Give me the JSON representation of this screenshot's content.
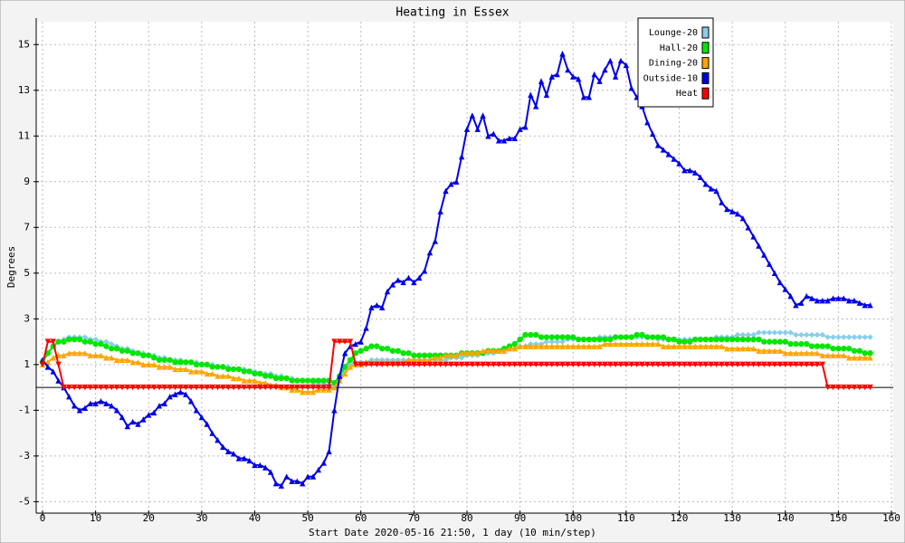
{
  "chart_data": {
    "type": "line",
    "title": "Heating in Essex",
    "x_label": "Start Date 2020-05-16 21:50, 1 day (10 min/step)",
    "y_label": "Degrees",
    "xlim": [
      0,
      160
    ],
    "xticks": [
      0,
      10,
      20,
      30,
      40,
      50,
      60,
      70,
      80,
      90,
      100,
      110,
      120,
      130,
      140,
      150,
      160
    ],
    "ylim": [
      -5.5,
      16
    ],
    "yticks": [
      -5,
      -3,
      -1,
      1,
      3,
      5,
      7,
      9,
      11,
      13,
      15
    ],
    "grid": true,
    "legend": "top-right",
    "x": [
      0,
      1,
      2,
      3,
      4,
      5,
      6,
      7,
      8,
      9,
      10,
      11,
      12,
      13,
      14,
      15,
      16,
      17,
      18,
      19,
      20,
      21,
      22,
      23,
      24,
      25,
      26,
      27,
      28,
      29,
      30,
      31,
      32,
      33,
      34,
      35,
      36,
      37,
      38,
      39,
      40,
      41,
      42,
      43,
      44,
      45,
      46,
      47,
      48,
      49,
      50,
      51,
      52,
      53,
      54,
      55,
      56,
      57,
      58,
      59,
      60,
      61,
      62,
      63,
      64,
      65,
      66,
      67,
      68,
      69,
      70,
      71,
      72,
      73,
      74,
      75,
      76,
      77,
      78,
      79,
      80,
      81,
      82,
      83,
      84,
      85,
      86,
      87,
      88,
      89,
      90,
      91,
      92,
      93,
      94,
      95,
      96,
      97,
      98,
      99,
      100,
      101,
      102,
      103,
      104,
      105,
      106,
      107,
      108,
      109,
      110,
      111,
      112,
      113,
      114,
      115,
      116,
      117,
      118,
      119,
      120,
      121,
      122,
      123,
      124,
      125,
      126,
      127,
      128,
      129,
      130,
      131,
      132,
      133,
      134,
      135,
      136,
      137,
      138,
      139,
      140,
      141,
      142,
      143,
      144,
      145,
      146,
      147,
      148,
      149,
      150,
      151,
      152,
      153,
      154,
      155,
      156
    ],
    "series": [
      {
        "name": "Lounge-20",
        "color": "#87ceeb",
        "marker": "diamond",
        "values": [
          1.2,
          1.5,
          1.8,
          2.0,
          2.1,
          2.2,
          2.2,
          2.2,
          2.2,
          2.1,
          2.1,
          2.0,
          2.0,
          1.9,
          1.8,
          1.7,
          1.7,
          1.6,
          1.5,
          1.5,
          1.4,
          1.4,
          1.3,
          1.3,
          1.2,
          1.2,
          1.2,
          1.1,
          1.1,
          1.1,
          1.0,
          1.0,
          1.0,
          0.9,
          0.9,
          0.9,
          0.8,
          0.8,
          0.8,
          0.7,
          0.7,
          0.6,
          0.6,
          0.6,
          0.5,
          0.5,
          0.4,
          0.4,
          0.3,
          0.3,
          0.3,
          0.2,
          0.2,
          0.2,
          0.1,
          0.1,
          0.3,
          0.8,
          1.0,
          1.1,
          1.1,
          1.1,
          1.2,
          1.2,
          1.2,
          1.2,
          1.2,
          1.2,
          1.2,
          1.2,
          1.2,
          1.2,
          1.2,
          1.2,
          1.2,
          1.2,
          1.2,
          1.3,
          1.3,
          1.3,
          1.4,
          1.4,
          1.4,
          1.5,
          1.5,
          1.5,
          1.6,
          1.6,
          1.7,
          1.7,
          1.8,
          1.8,
          1.9,
          1.9,
          1.9,
          2.0,
          2.0,
          2.0,
          2.0,
          2.1,
          2.1,
          2.1,
          2.1,
          2.1,
          2.1,
          2.2,
          2.2,
          2.2,
          2.2,
          2.2,
          2.2,
          2.2,
          2.2,
          2.2,
          2.2,
          2.2,
          2.1,
          2.1,
          2.1,
          2.1,
          2.1,
          2.1,
          2.1,
          2.1,
          2.1,
          2.1,
          2.1,
          2.2,
          2.2,
          2.2,
          2.2,
          2.3,
          2.3,
          2.3,
          2.3,
          2.4,
          2.4,
          2.4,
          2.4,
          2.4,
          2.4,
          2.4,
          2.3,
          2.3,
          2.3,
          2.3,
          2.3,
          2.3,
          2.2,
          2.2,
          2.2,
          2.2,
          2.2,
          2.2,
          2.2,
          2.2,
          2.2
        ]
      },
      {
        "name": "Hall-20",
        "color": "#00e600",
        "marker": "circle",
        "values": [
          1.1,
          1.5,
          1.8,
          2.0,
          2.0,
          2.1,
          2.1,
          2.1,
          2.0,
          2.0,
          1.9,
          1.9,
          1.8,
          1.7,
          1.7,
          1.6,
          1.6,
          1.5,
          1.5,
          1.4,
          1.4,
          1.3,
          1.2,
          1.2,
          1.2,
          1.1,
          1.1,
          1.1,
          1.1,
          1.0,
          1.0,
          1.0,
          0.9,
          0.9,
          0.9,
          0.8,
          0.8,
          0.8,
          0.7,
          0.7,
          0.6,
          0.6,
          0.5,
          0.5,
          0.4,
          0.4,
          0.4,
          0.3,
          0.3,
          0.3,
          0.3,
          0.3,
          0.3,
          0.3,
          0.3,
          0.2,
          0.5,
          0.9,
          1.2,
          1.5,
          1.6,
          1.7,
          1.8,
          1.8,
          1.7,
          1.7,
          1.6,
          1.6,
          1.5,
          1.5,
          1.4,
          1.4,
          1.4,
          1.4,
          1.4,
          1.4,
          1.4,
          1.4,
          1.4,
          1.5,
          1.5,
          1.5,
          1.5,
          1.5,
          1.6,
          1.6,
          1.6,
          1.7,
          1.8,
          1.9,
          2.1,
          2.3,
          2.3,
          2.3,
          2.2,
          2.2,
          2.2,
          2.2,
          2.2,
          2.2,
          2.2,
          2.1,
          2.1,
          2.1,
          2.1,
          2.1,
          2.1,
          2.1,
          2.2,
          2.2,
          2.2,
          2.2,
          2.3,
          2.3,
          2.2,
          2.2,
          2.2,
          2.2,
          2.1,
          2.1,
          2.0,
          2.0,
          2.0,
          2.1,
          2.1,
          2.1,
          2.1,
          2.1,
          2.1,
          2.1,
          2.1,
          2.1,
          2.1,
          2.1,
          2.1,
          2.1,
          2.0,
          2.0,
          2.0,
          2.0,
          2.0,
          1.9,
          1.9,
          1.9,
          1.9,
          1.8,
          1.8,
          1.8,
          1.8,
          1.7,
          1.7,
          1.7,
          1.7,
          1.6,
          1.6,
          1.5,
          1.5
        ]
      },
      {
        "name": "Dining-20",
        "color": "#ffa500",
        "marker": "triangle",
        "values": [
          1.0,
          1.1,
          1.3,
          1.4,
          1.4,
          1.5,
          1.5,
          1.5,
          1.5,
          1.4,
          1.4,
          1.4,
          1.3,
          1.3,
          1.2,
          1.2,
          1.2,
          1.1,
          1.1,
          1.0,
          1.0,
          1.0,
          0.9,
          0.9,
          0.9,
          0.8,
          0.8,
          0.8,
          0.7,
          0.7,
          0.7,
          0.6,
          0.6,
          0.5,
          0.5,
          0.5,
          0.4,
          0.4,
          0.3,
          0.3,
          0.3,
          0.2,
          0.2,
          0.1,
          0.1,
          0.0,
          0.0,
          -0.1,
          -0.1,
          -0.2,
          -0.2,
          -0.2,
          -0.1,
          -0.1,
          -0.1,
          0.0,
          0.3,
          0.6,
          0.9,
          1.0,
          1.0,
          1.1,
          1.1,
          1.1,
          1.1,
          1.1,
          1.1,
          1.1,
          1.1,
          1.2,
          1.2,
          1.2,
          1.2,
          1.2,
          1.3,
          1.3,
          1.4,
          1.4,
          1.4,
          1.5,
          1.5,
          1.5,
          1.5,
          1.6,
          1.6,
          1.6,
          1.6,
          1.6,
          1.7,
          1.7,
          1.8,
          1.8,
          1.8,
          1.8,
          1.8,
          1.8,
          1.8,
          1.8,
          1.8,
          1.8,
          1.8,
          1.8,
          1.8,
          1.8,
          1.8,
          1.8,
          1.9,
          1.9,
          1.9,
          1.9,
          1.9,
          1.9,
          1.9,
          1.9,
          1.9,
          1.9,
          1.9,
          1.8,
          1.8,
          1.8,
          1.8,
          1.8,
          1.8,
          1.8,
          1.8,
          1.8,
          1.8,
          1.8,
          1.8,
          1.7,
          1.7,
          1.7,
          1.7,
          1.7,
          1.7,
          1.6,
          1.6,
          1.6,
          1.6,
          1.6,
          1.5,
          1.5,
          1.5,
          1.5,
          1.5,
          1.5,
          1.5,
          1.4,
          1.4,
          1.4,
          1.4,
          1.4,
          1.3,
          1.3,
          1.3,
          1.3,
          1.3
        ]
      },
      {
        "name": "Outside-10",
        "color": "#0000e6",
        "marker": "triangle",
        "values": [
          1.2,
          0.9,
          0.7,
          0.3,
          0.0,
          -0.4,
          -0.8,
          -1.0,
          -0.9,
          -0.7,
          -0.7,
          -0.6,
          -0.7,
          -0.8,
          -1.0,
          -1.3,
          -1.7,
          -1.5,
          -1.6,
          -1.4,
          -1.2,
          -1.1,
          -0.8,
          -0.7,
          -0.4,
          -0.3,
          -0.2,
          -0.3,
          -0.6,
          -1.0,
          -1.3,
          -1.6,
          -2.0,
          -2.3,
          -2.6,
          -2.8,
          -2.9,
          -3.1,
          -3.1,
          -3.2,
          -3.4,
          -3.4,
          -3.5,
          -3.7,
          -4.2,
          -4.3,
          -3.9,
          -4.1,
          -4.1,
          -4.2,
          -3.9,
          -3.9,
          -3.6,
          -3.3,
          -2.8,
          -1.0,
          0.5,
          1.5,
          1.8,
          1.9,
          2.0,
          2.6,
          3.5,
          3.6,
          3.5,
          4.2,
          4.5,
          4.7,
          4.6,
          4.8,
          4.6,
          4.8,
          5.1,
          5.9,
          6.4,
          7.7,
          8.6,
          8.9,
          9.0,
          10.1,
          11.3,
          11.9,
          11.3,
          11.9,
          11.0,
          11.1,
          10.8,
          10.8,
          10.9,
          10.9,
          11.3,
          11.4,
          12.8,
          12.3,
          13.4,
          12.8,
          13.6,
          13.7,
          14.6,
          13.9,
          13.6,
          13.5,
          12.7,
          12.7,
          13.7,
          13.4,
          13.9,
          14.3,
          13.6,
          14.3,
          14.1,
          13.1,
          12.7,
          12.3,
          11.6,
          11.1,
          10.6,
          10.4,
          10.2,
          10.0,
          9.8,
          9.5,
          9.5,
          9.4,
          9.2,
          8.9,
          8.7,
          8.6,
          8.1,
          7.8,
          7.7,
          7.6,
          7.4,
          7.0,
          6.6,
          6.2,
          5.8,
          5.4,
          5.0,
          4.6,
          4.3,
          4.0,
          3.6,
          3.7,
          4.0,
          3.9,
          3.8,
          3.8,
          3.8,
          3.9,
          3.9,
          3.9,
          3.8,
          3.8,
          3.7,
          3.6,
          3.6
        ]
      },
      {
        "name": "Heat",
        "color": "#ff0000",
        "marker": "triangle-down",
        "values": [
          1,
          2,
          2,
          1,
          0,
          0,
          0,
          0,
          0,
          0,
          0,
          0,
          0,
          0,
          0,
          0,
          0,
          0,
          0,
          0,
          0,
          0,
          0,
          0,
          0,
          0,
          0,
          0,
          0,
          0,
          0,
          0,
          0,
          0,
          0,
          0,
          0,
          0,
          0,
          0,
          0,
          0,
          0,
          0,
          0,
          0,
          0,
          0,
          0,
          0,
          0,
          0,
          0,
          0,
          0,
          2,
          2,
          2,
          2,
          1,
          1,
          1,
          1,
          1,
          1,
          1,
          1,
          1,
          1,
          1,
          1,
          1,
          1,
          1,
          1,
          1,
          1,
          1,
          1,
          1,
          1,
          1,
          1,
          1,
          1,
          1,
          1,
          1,
          1,
          1,
          1,
          1,
          1,
          1,
          1,
          1,
          1,
          1,
          1,
          1,
          1,
          1,
          1,
          1,
          1,
          1,
          1,
          1,
          1,
          1,
          1,
          1,
          1,
          1,
          1,
          1,
          1,
          1,
          1,
          1,
          1,
          1,
          1,
          1,
          1,
          1,
          1,
          1,
          1,
          1,
          1,
          1,
          1,
          1,
          1,
          1,
          1,
          1,
          1,
          1,
          1,
          1,
          1,
          1,
          1,
          1,
          1,
          1,
          0,
          0,
          0,
          0,
          0,
          0,
          0,
          0,
          0
        ]
      }
    ]
  }
}
